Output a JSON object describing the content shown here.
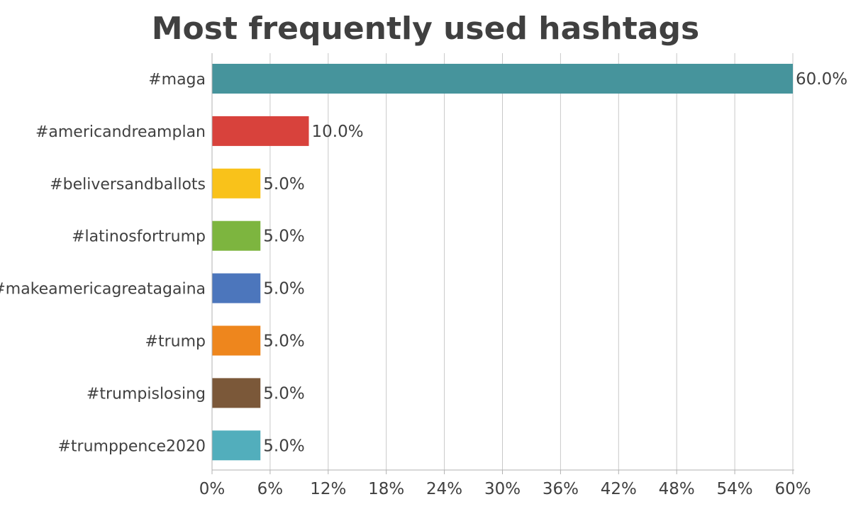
{
  "chart_data": {
    "type": "bar",
    "orientation": "horizontal",
    "title": "Most frequently used hashtags",
    "xlabel": "",
    "ylabel": "",
    "categories": [
      "#maga",
      "#americandreamplan",
      "#beliversandballots",
      "#latinosfortrump",
      "#makeamericagreatagaina",
      "#trump",
      "#trumpislosing",
      "#trumppence2020"
    ],
    "values": [
      60.0,
      10.0,
      5.0,
      5.0,
      5.0,
      5.0,
      5.0,
      5.0
    ],
    "data_labels": [
      "60.0%",
      "10.0%",
      "5.0%",
      "5.0%",
      "5.0%",
      "5.0%",
      "5.0%",
      "5.0%"
    ],
    "colors": [
      "#46949C",
      "#D8423C",
      "#F9C21A",
      "#7DB53F",
      "#4C76BC",
      "#EE861D",
      "#7B5839",
      "#52AEBC"
    ],
    "xlim": [
      0,
      60
    ],
    "x_ticks": [
      0,
      6,
      12,
      18,
      24,
      30,
      36,
      42,
      48,
      54,
      60
    ],
    "x_tick_labels": [
      "0%",
      "6%",
      "12%",
      "18%",
      "24%",
      "30%",
      "36%",
      "42%",
      "48%",
      "54%",
      "60%"
    ],
    "grid": "vertical",
    "legend": "none",
    "gridline_color": "#c8c8c8",
    "axis_color": "#b0b0b0",
    "text_color": "#404040"
  }
}
